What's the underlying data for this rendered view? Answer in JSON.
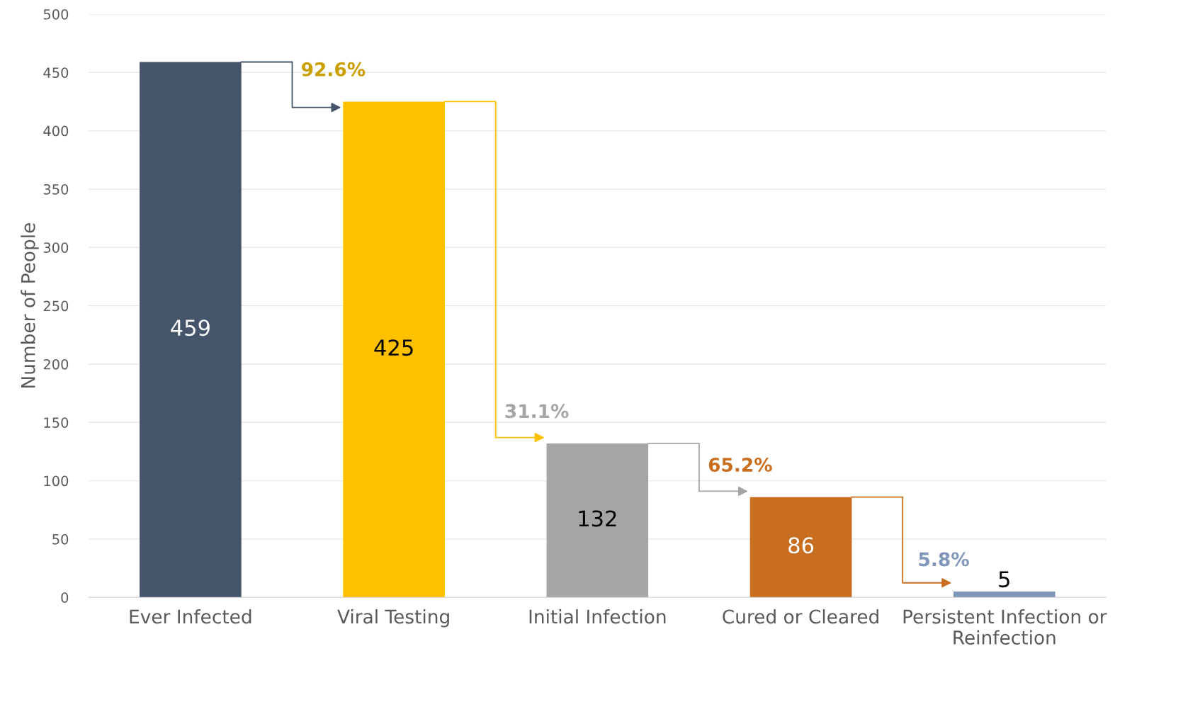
{
  "chart_data": {
    "type": "bar",
    "categories": [
      "Ever Infected",
      "Viral Testing",
      "Initial Infection",
      "Cured or Cleared",
      "Persistent Infection or Reinfection"
    ],
    "values": [
      459,
      425,
      132,
      86,
      5
    ],
    "colors": [
      "#44546a",
      "#ffc000",
      "#a5a5a5",
      "#c96d1f",
      "#7f96b8"
    ],
    "ylabel": "Number of People",
    "ylim": [
      0,
      500
    ],
    "yticks": [
      0,
      50,
      100,
      150,
      200,
      250,
      300,
      350,
      400,
      450,
      500
    ],
    "grid": "y",
    "data_labels": true,
    "annotations": [
      {
        "text": "92.6%",
        "x": "Viral Testing",
        "y": 425
      },
      {
        "text": "31.1%",
        "x": "Initial Infection",
        "y": 132
      },
      {
        "text": "65.2%",
        "x": "Cured or Cleared",
        "y": 86
      },
      {
        "text": "5.8%",
        "x": "Persistent Infection or Reinfection",
        "y": 5
      }
    ]
  }
}
